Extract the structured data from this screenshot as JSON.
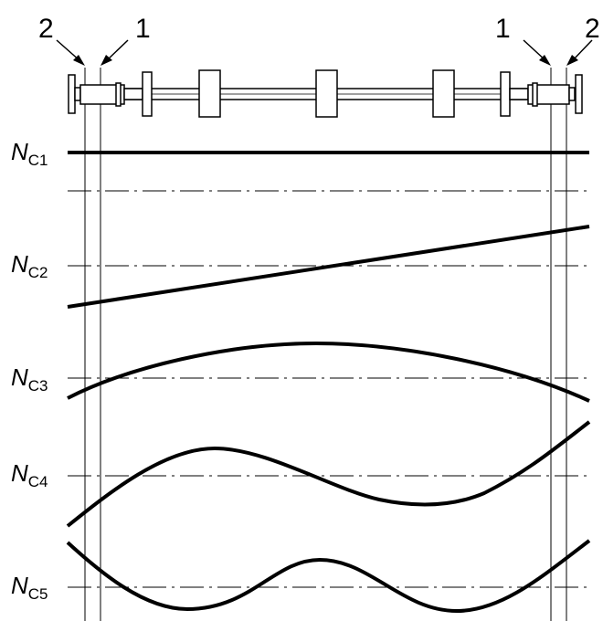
{
  "callouts": {
    "left_outer": "2",
    "left_inner": "1",
    "right_inner": "1",
    "right_outer": "2"
  },
  "modes": [
    {
      "symbol": "N",
      "subscript": "C1"
    },
    {
      "symbol": "N",
      "subscript": "C2"
    },
    {
      "symbol": "N",
      "subscript": "C3"
    },
    {
      "symbol": "N",
      "subscript": "C4"
    },
    {
      "symbol": "N",
      "subscript": "C5"
    }
  ]
}
